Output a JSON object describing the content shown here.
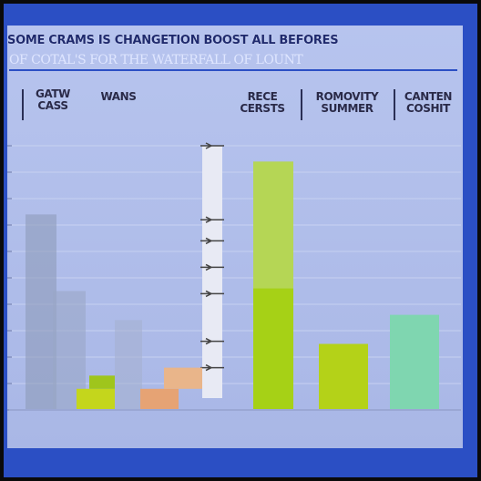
{
  "header": {
    "title": "SOME CRAMS IS CHANGETION BOOST ALL BEFORES",
    "subtitle": "OF COTAL'S FOR THE WATERFALL OF LOUNT"
  },
  "chart_data": {
    "type": "bar",
    "categories": [
      "GATW CASS",
      "WANS",
      "RECE CERSTS",
      "ROMOVITY SUMMER",
      "CANTEN COSHIT"
    ],
    "legend_labels": [
      {
        "key": "gatw",
        "text": "GATW\nCASS"
      },
      {
        "key": "wans",
        "text": "WANS"
      },
      {
        "key": "rece",
        "text": "RECE\nCERSTS"
      },
      {
        "key": "romovity",
        "text": "ROMOVITY\nSUMMER"
      },
      {
        "key": "canten",
        "text": "CANTEN\nCOSHIT"
      }
    ],
    "bars": [
      {
        "name": "gray-a",
        "value": 74,
        "color": "#8e9bb9"
      },
      {
        "name": "gray-b",
        "value": 45,
        "color": "#99a7c6"
      },
      {
        "name": "gray-c",
        "value": 34,
        "color": "#a5b1d0"
      },
      {
        "name": "yellow-small",
        "value": 8,
        "color": "#c4d61c"
      },
      {
        "name": "orange-small",
        "value": 8,
        "color": "#e6a374"
      },
      {
        "name": "lime-tall",
        "value": 94,
        "color": "#a6d116"
      },
      {
        "name": "lime-mid",
        "value": 25,
        "color": "#b4d218"
      },
      {
        "name": "teal",
        "value": 36,
        "color": "#7fd6b0"
      }
    ],
    "ylim": [
      0,
      100
    ],
    "grid": true,
    "colors": {
      "background": "#aab8e8",
      "frame": "#2b4fc4",
      "axis_strip": "#e8eaf4",
      "grid": "#c7d1f1"
    }
  }
}
